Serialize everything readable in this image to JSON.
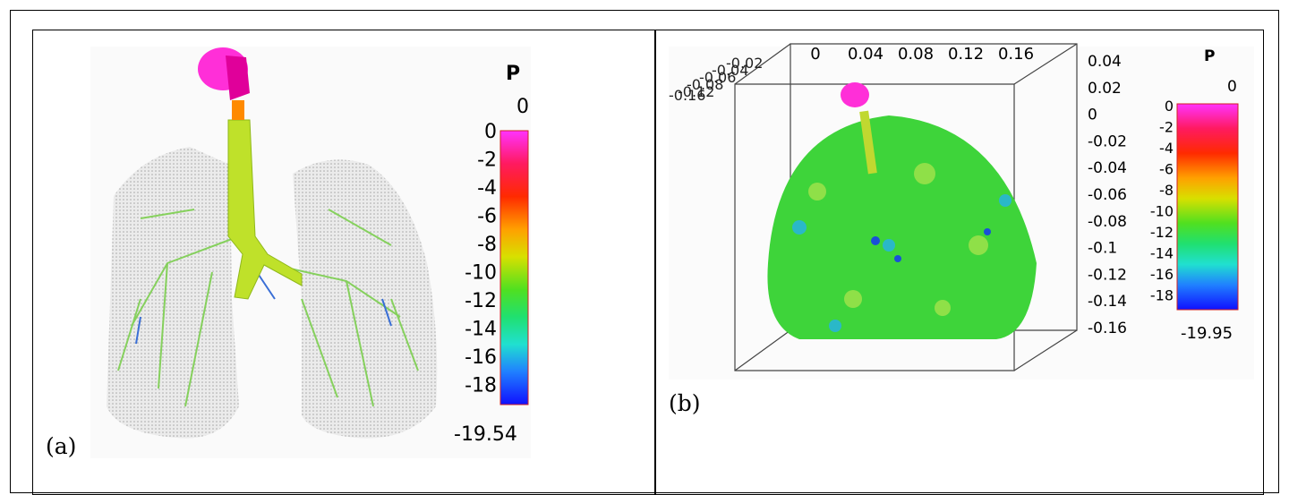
{
  "panel_a": {
    "caption": "(a)",
    "legend_title": "P",
    "legend_max": "0",
    "legend_min": "-19.54",
    "ticks": [
      "0",
      "-2",
      "-4",
      "-6",
      "-8",
      "-10",
      "-12",
      "-14",
      "-16",
      "-18"
    ]
  },
  "panel_b": {
    "caption": "(b)",
    "legend_title": "P",
    "legend_max": "0",
    "legend_min": "-19.95",
    "ticks": [
      "0",
      "-2",
      "-4",
      "-6",
      "-8",
      "-10",
      "-12",
      "-14",
      "-16",
      "-18"
    ],
    "top_axis_ticks": [
      "0",
      "0.04",
      "0.08",
      "0.12",
      "0.16"
    ],
    "right_axis_ticks": [
      "0.04",
      "0.02",
      "0",
      "-0.02",
      "-0.04",
      "-0.06",
      "-0.08",
      "-0.1",
      "-0.12",
      "-0.14",
      "-0.16"
    ],
    "cluttered_axis_text": [
      "-0.02",
      "-0.04",
      "-0.06",
      "-0.08",
      "-0.12",
      "-0.16"
    ]
  }
}
